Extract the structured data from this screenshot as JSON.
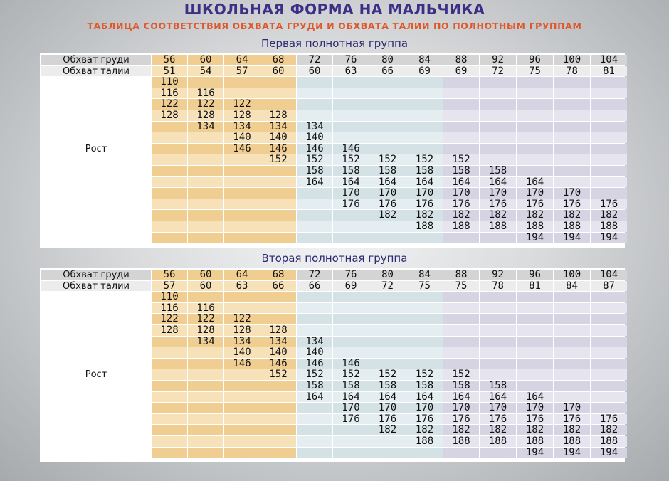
{
  "title": "ШКОЛЬНАЯ ФОРМА НА МАЛЬЧИКА",
  "subtitle": "ТАБЛИЦА СООТВЕТСТВИЯ ОБХВАТА ГРУДИ И ОБХВАТА ТАЛИИ ПО ПОЛНОТНЫМ ГРУППАМ",
  "colors": {
    "title": "#3c2f86",
    "subtitle": "#e0582a",
    "orange_a": "#f0cd90",
    "orange_b": "#f6e1b8",
    "blue_a": "#d4e2e6",
    "blue_b": "#e4eef0",
    "lavender_a": "#d6d3e3",
    "lavender_b": "#e6e4ef"
  },
  "groups": [
    {
      "name": "Первая полнотная группа",
      "chest_label": "Обхват груди",
      "waist_label": "Обхват талии",
      "height_label": "Рост",
      "chest": [
        "56",
        "60",
        "64",
        "68",
        "72",
        "76",
        "80",
        "84",
        "88",
        "92",
        "96",
        "100",
        "104"
      ],
      "waist": [
        "51",
        "54",
        "57",
        "60",
        "60",
        "63",
        "66",
        "69",
        "69",
        "72",
        "75",
        "78",
        "81"
      ],
      "heights": [
        [
          "110",
          "",
          "",
          "",
          "",
          "",
          "",
          "",
          "",
          "",
          "",
          "",
          ""
        ],
        [
          "116",
          "116",
          "",
          "",
          "",
          "",
          "",
          "",
          "",
          "",
          "",
          "",
          ""
        ],
        [
          "122",
          "122",
          "122",
          "",
          "",
          "",
          "",
          "",
          "",
          "",
          "",
          "",
          ""
        ],
        [
          "128",
          "128",
          "128",
          "128",
          "",
          "",
          "",
          "",
          "",
          "",
          "",
          "",
          ""
        ],
        [
          "",
          "134",
          "134",
          "134",
          "134",
          "",
          "",
          "",
          "",
          "",
          "",
          "",
          ""
        ],
        [
          "",
          "",
          "140",
          "140",
          "140",
          "",
          "",
          "",
          "",
          "",
          "",
          "",
          ""
        ],
        [
          "",
          "",
          "146",
          "146",
          "146",
          "146",
          "",
          "",
          "",
          "",
          "",
          "",
          ""
        ],
        [
          "",
          "",
          "",
          "152",
          "152",
          "152",
          "152",
          "152",
          "152",
          "",
          "",
          "",
          ""
        ],
        [
          "",
          "",
          "",
          "",
          "158",
          "158",
          "158",
          "158",
          "158",
          "158",
          "",
          "",
          ""
        ],
        [
          "",
          "",
          "",
          "",
          "164",
          "164",
          "164",
          "164",
          "164",
          "164",
          "164",
          "",
          ""
        ],
        [
          "",
          "",
          "",
          "",
          "",
          "170",
          "170",
          "170",
          "170",
          "170",
          "170",
          "170",
          ""
        ],
        [
          "",
          "",
          "",
          "",
          "",
          "176",
          "176",
          "176",
          "176",
          "176",
          "176",
          "176",
          "176"
        ],
        [
          "",
          "",
          "",
          "",
          "",
          "",
          "182",
          "182",
          "182",
          "182",
          "182",
          "182",
          "182"
        ],
        [
          "",
          "",
          "",
          "",
          "",
          "",
          "",
          "188",
          "188",
          "188",
          "188",
          "188",
          "188"
        ],
        [
          "",
          "",
          "",
          "",
          "",
          "",
          "",
          "",
          "",
          "",
          "194",
          "194",
          "194"
        ]
      ]
    },
    {
      "name": "Вторая полнотная группа",
      "chest_label": "Обхват груди",
      "waist_label": "Обхват талии",
      "height_label": "Рост",
      "chest": [
        "56",
        "60",
        "64",
        "68",
        "72",
        "76",
        "80",
        "84",
        "88",
        "92",
        "96",
        "100",
        "104"
      ],
      "waist": [
        "57",
        "60",
        "63",
        "66",
        "66",
        "69",
        "72",
        "75",
        "75",
        "78",
        "81",
        "84",
        "87"
      ],
      "heights": [
        [
          "110",
          "",
          "",
          "",
          "",
          "",
          "",
          "",
          "",
          "",
          "",
          "",
          ""
        ],
        [
          "116",
          "116",
          "",
          "",
          "",
          "",
          "",
          "",
          "",
          "",
          "",
          "",
          ""
        ],
        [
          "122",
          "122",
          "122",
          "",
          "",
          "",
          "",
          "",
          "",
          "",
          "",
          "",
          ""
        ],
        [
          "128",
          "128",
          "128",
          "128",
          "",
          "",
          "",
          "",
          "",
          "",
          "",
          "",
          ""
        ],
        [
          "",
          "134",
          "134",
          "134",
          "134",
          "",
          "",
          "",
          "",
          "",
          "",
          "",
          ""
        ],
        [
          "",
          "",
          "140",
          "140",
          "140",
          "",
          "",
          "",
          "",
          "",
          "",
          "",
          ""
        ],
        [
          "",
          "",
          "146",
          "146",
          "146",
          "146",
          "",
          "",
          "",
          "",
          "",
          "",
          ""
        ],
        [
          "",
          "",
          "",
          "152",
          "152",
          "152",
          "152",
          "152",
          "152",
          "",
          "",
          "",
          ""
        ],
        [
          "",
          "",
          "",
          "",
          "158",
          "158",
          "158",
          "158",
          "158",
          "158",
          "",
          "",
          ""
        ],
        [
          "",
          "",
          "",
          "",
          "164",
          "164",
          "164",
          "164",
          "164",
          "164",
          "164",
          "",
          ""
        ],
        [
          "",
          "",
          "",
          "",
          "",
          "170",
          "170",
          "170",
          "170",
          "170",
          "170",
          "170",
          ""
        ],
        [
          "",
          "",
          "",
          "",
          "",
          "176",
          "176",
          "176",
          "176",
          "176",
          "176",
          "176",
          "176"
        ],
        [
          "",
          "",
          "",
          "",
          "",
          "",
          "182",
          "182",
          "182",
          "182",
          "182",
          "182",
          "182"
        ],
        [
          "",
          "",
          "",
          "",
          "",
          "",
          "",
          "188",
          "188",
          "188",
          "188",
          "188",
          "188"
        ],
        [
          "",
          "",
          "",
          "",
          "",
          "",
          "",
          "",
          "",
          "",
          "194",
          "194",
          "194"
        ]
      ]
    }
  ]
}
